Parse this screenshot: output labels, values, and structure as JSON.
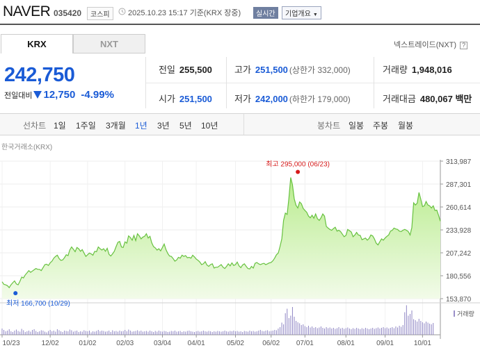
{
  "header": {
    "name": "NAVER",
    "code": "035420",
    "market": "코스피",
    "datetime": "2025.10.23 15:17 기준(KRX 장중)",
    "realtime_label": "실시간",
    "company_info_label": "기업개요"
  },
  "tabs": {
    "krx": "KRX",
    "nxt": "NXT"
  },
  "nxt_link": "넥스트레이드(NXT)",
  "nxt_help": "?",
  "quote": {
    "price": "242,750",
    "change_label": "전일대비",
    "change_amount": "12,750",
    "change_pct": "-4.99%"
  },
  "stats": {
    "prev_close_label": "전일",
    "prev_close": "255,500",
    "high_label": "고가",
    "high": "251,500",
    "upper_limit": "(상한가 332,000)",
    "volume_label": "거래량",
    "volume": "1,948,016",
    "open_label": "시가",
    "open": "251,500",
    "low_label": "저가",
    "low": "242,000",
    "lower_limit": "(하한가 179,000)",
    "trade_value_label": "거래대금",
    "trade_value": "480,067 백만"
  },
  "periods": {
    "line_label": "선차트",
    "items": [
      "1일",
      "1주일",
      "3개월",
      "1년",
      "3년",
      "5년",
      "10년"
    ],
    "selected": "1년",
    "candle_label": "봉차트",
    "candle_items": [
      "일봉",
      "주봉",
      "월봉"
    ]
  },
  "colors": {
    "accent_blue": "#1a5bd6",
    "up_red": "#d61b1b",
    "area_fill": "#c9f0a8",
    "line_green": "#67c13f"
  },
  "chart_data": {
    "type": "area",
    "source_label": "한국거래소(KRX)",
    "ylim": [
      153870,
      313987
    ],
    "y_ticks": [
      "313,987",
      "287,301",
      "260,614",
      "233,928",
      "207,242",
      "180,556",
      "153,870"
    ],
    "y_tick_values": [
      313987,
      287301,
      260614,
      233928,
      207242,
      180556,
      153870
    ],
    "x_ticks": [
      "10/23",
      "12/02",
      "01/02",
      "02/03",
      "03/04",
      "04/01",
      "05/02",
      "06/02",
      "07/01",
      "08/01",
      "09/01",
      "10/01"
    ],
    "x_tick_index": [
      0,
      27,
      48,
      69,
      90,
      109,
      131,
      151,
      170,
      193,
      215,
      236
    ],
    "max_label": "최고 295,000 (06/23)",
    "max_index": 166,
    "max_value": 295000,
    "min_label": "최저 166,700 (10/29)",
    "min_index": 4,
    "min_value": 166700,
    "volume_legend": "거래량",
    "series": [
      {
        "values": [
          173500,
          170500,
          170000,
          169000,
          166700,
          170000,
          172500,
          174500,
          171000,
          170000,
          174000,
          179000,
          178000,
          181500,
          184000,
          186500,
          184500,
          186000,
          187500,
          189000,
          188000,
          188000,
          186500,
          190000,
          193500,
          194000,
          192500,
          195500,
          197500,
          201000,
          203000,
          204500,
          200500,
          198500,
          199000,
          201500,
          205000,
          204000,
          210500,
          214000,
          211500,
          208500,
          213500,
          212000,
          209000,
          211000,
          207000,
          203000,
          205000,
          207000,
          206000,
          204500,
          209000,
          208500,
          214000,
          212000,
          210500,
          212000,
          209000,
          212500,
          205500,
          203500,
          206000,
          209000,
          214500,
          219500,
          220500,
          214000,
          213500,
          220000,
          218500,
          227000,
          225000,
          222000,
          227500,
          221500,
          229500,
          227000,
          223500,
          225500,
          226500,
          229500,
          224500,
          226500,
          219000,
          214500,
          213000,
          210500,
          212000,
          209500,
          213500,
          217500,
          211000,
          206500,
          203500,
          203000,
          200500,
          197500,
          199000,
          202000,
          201000,
          204500,
          203000,
          204000,
          201500,
          202000,
          201000,
          204500,
          202500,
          200000,
          198500,
          196500,
          193500,
          194500,
          197000,
          193000,
          191500,
          193500,
          194500,
          189500,
          190500,
          190500,
          192000,
          193500,
          190500,
          189000,
          191500,
          194500,
          192000,
          195500,
          192500,
          193500,
          196500,
          192000,
          190000,
          193000,
          194500,
          191500,
          189000,
          188500,
          191500,
          189500,
          195000,
          196000,
          194500,
          193500,
          194500,
          195000,
          193500,
          194500,
          195500,
          196000,
          198000,
          201000,
          205000,
          207000,
          214500,
          223500,
          245000,
          253500,
          252000,
          271000,
          295000,
          286500,
          270000,
          262500,
          259500,
          266500,
          264500,
          259000,
          256500,
          254500,
          250000,
          248000,
          251000,
          247500,
          252500,
          247000,
          245000,
          248000,
          252500,
          250000,
          238000,
          236000,
          234500,
          233500,
          235500,
          237000,
          232500,
          233500,
          232000,
          229000,
          226000,
          227500,
          234500,
          233000,
          231500,
          226000,
          228000,
          231000,
          228000,
          227500,
          222500,
          223500,
          224500,
          222000,
          224000,
          228000,
          227000,
          223500,
          218500,
          216500,
          220000,
          223500,
          222000,
          224500,
          226500,
          228000,
          232500,
          233500,
          236000,
          235000,
          234500,
          232500,
          232000,
          233500,
          234500,
          233500,
          232000,
          228000,
          236500,
          265500,
          263000,
          265000,
          277500,
          270000,
          261000,
          262000,
          267000,
          263000,
          262000,
          259500,
          262000,
          256500,
          257000,
          251000,
          244000
        ]
      }
    ],
    "volume": [
      0.18,
      0.14,
      0.1,
      0.12,
      0.16,
      0.1,
      0.08,
      0.12,
      0.15,
      0.11,
      0.09,
      0.17,
      0.13,
      0.08,
      0.1,
      0.12,
      0.09,
      0.14,
      0.16,
      0.11,
      0.08,
      0.1,
      0.13,
      0.12,
      0.09,
      0.07,
      0.11,
      0.14,
      0.1,
      0.12,
      0.09,
      0.16,
      0.13,
      0.1,
      0.08,
      0.12,
      0.11,
      0.1,
      0.15,
      0.13,
      0.09,
      0.11,
      0.12,
      0.08,
      0.1,
      0.09,
      0.13,
      0.11,
      0.1,
      0.12,
      0.07,
      0.1,
      0.09,
      0.11,
      0.14,
      0.1,
      0.12,
      0.11,
      0.09,
      0.1,
      0.12,
      0.08,
      0.13,
      0.1,
      0.11,
      0.09,
      0.12,
      0.1,
      0.11,
      0.14,
      0.1,
      0.15,
      0.12,
      0.09,
      0.1,
      0.11,
      0.13,
      0.1,
      0.12,
      0.09,
      0.1,
      0.11,
      0.09,
      0.12,
      0.1,
      0.08,
      0.11,
      0.09,
      0.12,
      0.1,
      0.09,
      0.11,
      0.1,
      0.08,
      0.09,
      0.11,
      0.1,
      0.12,
      0.09,
      0.1,
      0.11,
      0.08,
      0.1,
      0.09,
      0.11,
      0.12,
      0.1,
      0.09,
      0.08,
      0.1,
      0.11,
      0.09,
      0.1,
      0.12,
      0.1,
      0.09,
      0.11,
      0.1,
      0.08,
      0.1,
      0.09,
      0.11,
      0.1,
      0.09,
      0.1,
      0.12,
      0.1,
      0.09,
      0.11,
      0.1,
      0.12,
      0.1,
      0.11,
      0.09,
      0.1,
      0.08,
      0.11,
      0.1,
      0.09,
      0.12,
      0.1,
      0.11,
      0.09,
      0.1,
      0.12,
      0.14,
      0.11,
      0.1,
      0.12,
      0.13,
      0.1,
      0.11,
      0.12,
      0.14,
      0.13,
      0.18,
      0.22,
      0.35,
      0.3,
      0.62,
      0.75,
      0.48,
      0.55,
      0.8,
      0.52,
      0.4,
      0.36,
      0.33,
      0.28,
      0.3,
      0.25,
      0.22,
      0.26,
      0.21,
      0.24,
      0.2,
      0.22,
      0.19,
      0.21,
      0.24,
      0.2,
      0.18,
      0.22,
      0.19,
      0.21,
      0.18,
      0.2,
      0.17,
      0.19,
      0.22,
      0.18,
      0.2,
      0.17,
      0.19,
      0.21,
      0.18,
      0.16,
      0.19,
      0.17,
      0.2,
      0.18,
      0.16,
      0.19,
      0.17,
      0.2,
      0.18,
      0.16,
      0.18,
      0.2,
      0.17,
      0.19,
      0.21,
      0.18,
      0.2,
      0.22,
      0.19,
      0.21,
      0.18,
      0.2,
      0.22,
      0.19,
      0.24,
      0.21,
      0.26,
      0.23,
      0.28,
      0.65,
      0.85,
      0.55,
      0.6,
      0.7,
      0.45,
      0.42,
      0.38,
      0.46,
      0.4,
      0.36,
      0.33,
      0.38,
      0.35,
      0.32,
      0.3,
      0.34
    ]
  }
}
